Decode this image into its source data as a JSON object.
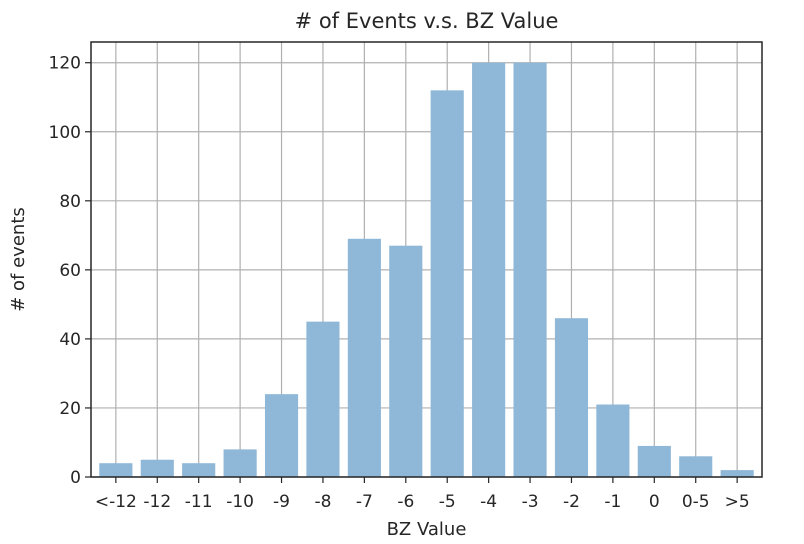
{
  "chart_data": {
    "type": "bar",
    "title": "# of Events v.s. BZ Value",
    "xlabel": "BZ Value",
    "ylabel": "# of events",
    "categories": [
      "<-12",
      "-12",
      "-11",
      "-10",
      "-9",
      "-8",
      "-7",
      "-6",
      "-5",
      "-4",
      "-3",
      "-2",
      "-1",
      "0",
      "0-5",
      ">5"
    ],
    "values": [
      4,
      5,
      4,
      8,
      24,
      45,
      69,
      67,
      112,
      120,
      120,
      46,
      21,
      9,
      6,
      2
    ],
    "ylim": [
      0,
      126
    ],
    "yticks": [
      0,
      20,
      40,
      60,
      80,
      100,
      120
    ],
    "grid": true,
    "bar_color": "#8fb8d8",
    "grid_color": "#b0b0b0"
  }
}
